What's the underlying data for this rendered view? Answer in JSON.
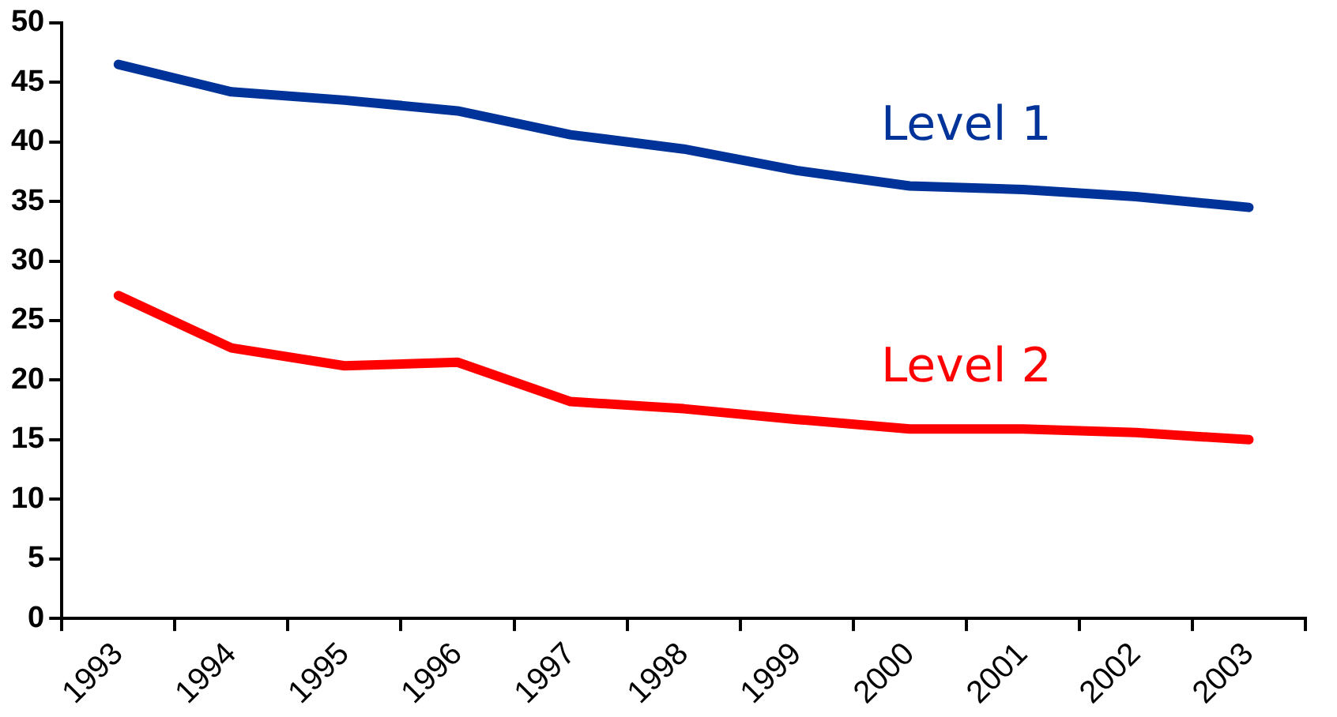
{
  "chart_data": {
    "type": "line",
    "categories": [
      "1993",
      "1994",
      "1995",
      "1996",
      "1997",
      "1998",
      "1999",
      "2000",
      "2001",
      "2002",
      "2003"
    ],
    "series": [
      {
        "name": "Level 1",
        "color": "#003399",
        "values": [
          46.5,
          44.2,
          43.5,
          42.6,
          40.6,
          39.4,
          37.6,
          36.3,
          36.0,
          35.4,
          34.5
        ]
      },
      {
        "name": "Level 2",
        "color": "#ff0000",
        "values": [
          27.1,
          22.7,
          21.2,
          21.5,
          18.2,
          17.6,
          16.7,
          15.9,
          15.9,
          15.6,
          15.0
        ]
      }
    ],
    "ylim": [
      0,
      50
    ],
    "yticks": [
      0,
      5,
      10,
      15,
      20,
      25,
      30,
      35,
      40,
      45,
      50
    ],
    "grid": false,
    "legend": false,
    "marker": "none",
    "line_style": "solid"
  }
}
